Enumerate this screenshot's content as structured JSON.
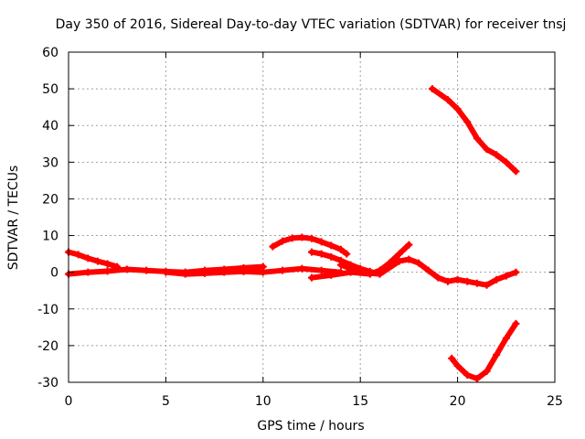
{
  "chart_data": {
    "type": "scatter",
    "title": "Day 350 of 2016, Sidereal Day-to-day VTEC variation (SDTVAR) for receiver tnsj",
    "xlabel": "GPS time / hours",
    "ylabel": "SDTVAR / TECUs",
    "xlim": [
      0,
      25
    ],
    "ylim": [
      -30,
      60
    ],
    "xticks": [
      "0",
      "5",
      "10",
      "15",
      "20",
      "25"
    ],
    "yticks": [
      "-30",
      "-20",
      "-10",
      "0",
      "10",
      "20",
      "30",
      "40",
      "50",
      "60"
    ],
    "grid": true,
    "color": "#ff0000",
    "series": [
      {
        "x": [
          0.0,
          0.5,
          1.0,
          1.5,
          2.0,
          2.5
        ],
        "y": [
          5.5,
          4.8,
          3.8,
          3.0,
          2.3,
          1.5
        ]
      },
      {
        "x": [
          0.0,
          1.0,
          2.0,
          3.0,
          4.0,
          5.0,
          6.0,
          7.0,
          8.0,
          9.0,
          10.0
        ],
        "y": [
          -0.5,
          0.0,
          0.3,
          0.8,
          0.5,
          0.2,
          0.0,
          0.5,
          0.8,
          1.2,
          1.5
        ]
      },
      {
        "x": [
          5.0,
          6.0,
          7.0,
          8.0,
          9.0,
          10.0,
          11.0,
          12.0,
          13.0,
          14.0
        ],
        "y": [
          0.0,
          -0.5,
          -0.3,
          0.0,
          0.2,
          0.0,
          0.5,
          1.0,
          0.5,
          0.0
        ]
      },
      {
        "x": [
          10.5,
          11.0,
          11.5,
          12.0,
          12.5,
          13.0,
          13.5,
          14.0,
          14.3
        ],
        "y": [
          7.0,
          8.5,
          9.3,
          9.5,
          9.2,
          8.3,
          7.3,
          6.2,
          5.0
        ]
      },
      {
        "x": [
          12.5,
          13.0,
          13.5,
          14.0,
          14.5,
          15.0,
          15.5,
          16.0
        ],
        "y": [
          5.5,
          5.0,
          4.2,
          3.2,
          2.0,
          1.0,
          0.2,
          -0.5
        ]
      },
      {
        "x": [
          12.5,
          13.5,
          14.5,
          15.5,
          16.0,
          16.5,
          17.0,
          17.5
        ],
        "y": [
          -1.5,
          -0.8,
          0.0,
          -0.5,
          0.5,
          2.5,
          5.0,
          7.5
        ]
      },
      {
        "x": [
          14.0,
          14.5,
          15.0,
          16.0,
          17.0,
          17.5,
          18.0,
          18.5,
          19.0,
          19.5,
          20.0,
          20.5,
          21.0,
          21.5,
          22.0,
          22.5,
          23.0
        ],
        "y": [
          2.0,
          1.0,
          0.0,
          -0.5,
          3.0,
          3.5,
          2.5,
          0.5,
          -1.5,
          -2.5,
          -2.0,
          -2.5,
          -3.0,
          -3.5,
          -2.0,
          -1.0,
          0.0
        ]
      },
      {
        "x": [
          18.7,
          19.5,
          20.0,
          20.5,
          21.0,
          21.5,
          22.0,
          22.5,
          23.0
        ],
        "y": [
          50.0,
          47.0,
          44.5,
          41.0,
          36.5,
          33.5,
          32.0,
          30.0,
          27.5
        ]
      },
      {
        "x": [
          19.7,
          20.0,
          20.5,
          21.0,
          21.5,
          22.0,
          22.5,
          23.0
        ],
        "y": [
          -23.5,
          -25.5,
          -28.0,
          -29.0,
          -27.0,
          -22.5,
          -18.0,
          -14.0
        ]
      }
    ]
  }
}
